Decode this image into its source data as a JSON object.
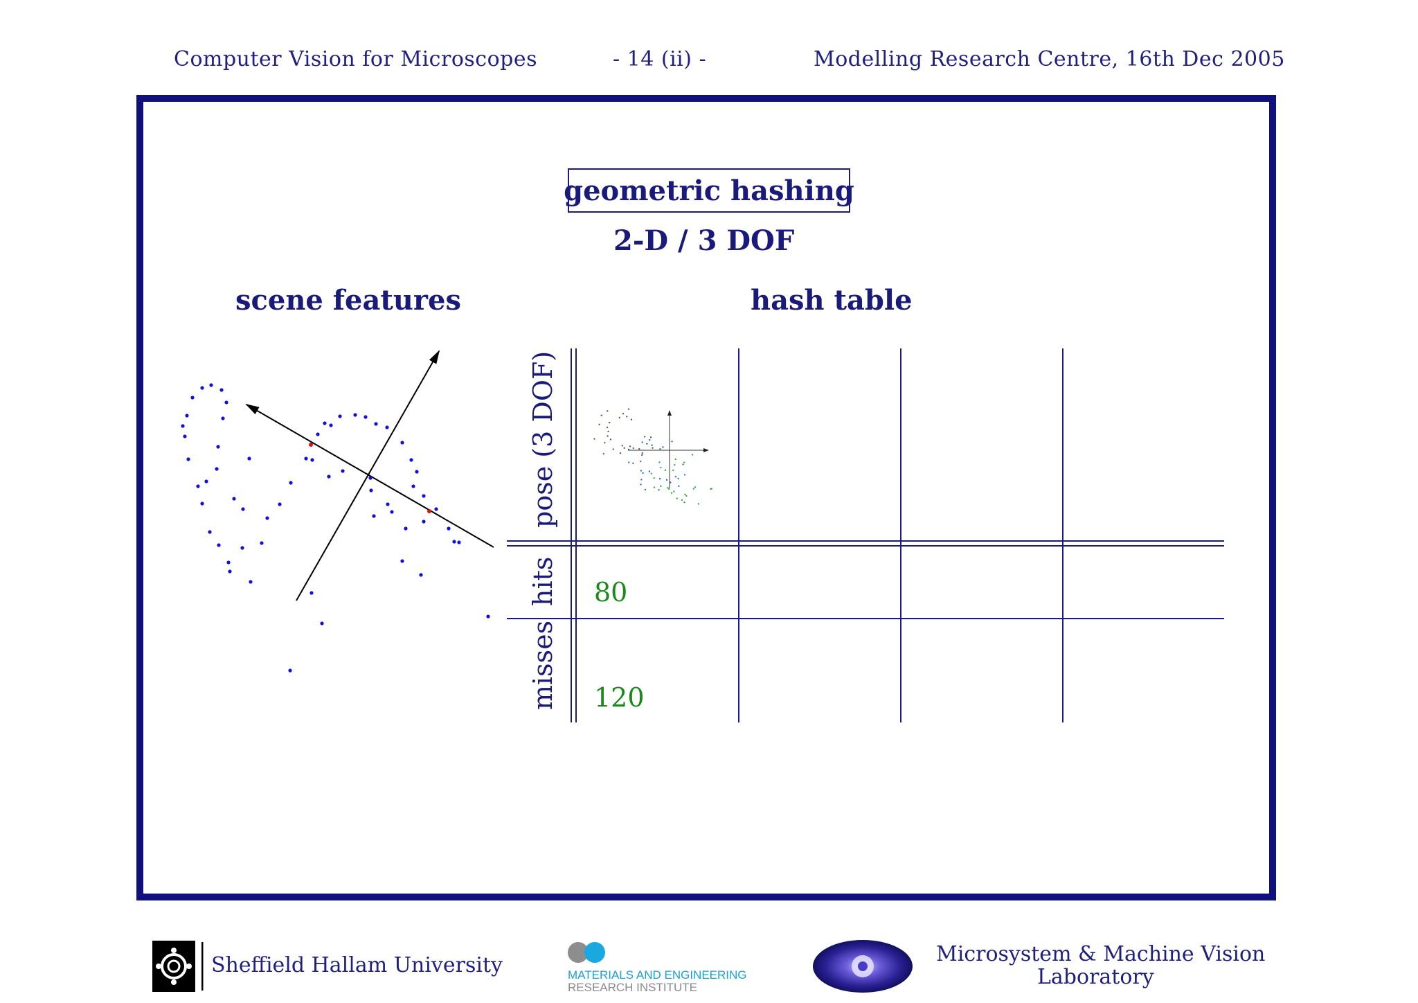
{
  "header": {
    "left": "Computer Vision for Microscopes",
    "center": "- 14 (ii) -",
    "right": "Modelling Research Centre, 16th Dec 2005"
  },
  "slide": {
    "title": "geometric hashing",
    "subtitle": "2-D / 3 DOF",
    "scene_heading": "scene features",
    "table_heading": "hash table",
    "row_labels": {
      "pose": "pose (3 DOF)",
      "hits": "hits",
      "misses": "misses"
    },
    "counts": {
      "hits": "80",
      "misses": "120"
    }
  },
  "footer": {
    "university": "Sheffield Hallam University",
    "institute_line1": "MATERIALS AND ENGINEERING",
    "institute_line2": "RESEARCH INSTITUTE",
    "lab_line1": "Microsystem & Machine Vision",
    "lab_line2": "Laboratory"
  },
  "colors": {
    "frame": "#10107e",
    "text": "#1a1a7a",
    "points": "#1010dd",
    "basis_points": "#dd1010",
    "counts": "#1a8a1a"
  }
}
